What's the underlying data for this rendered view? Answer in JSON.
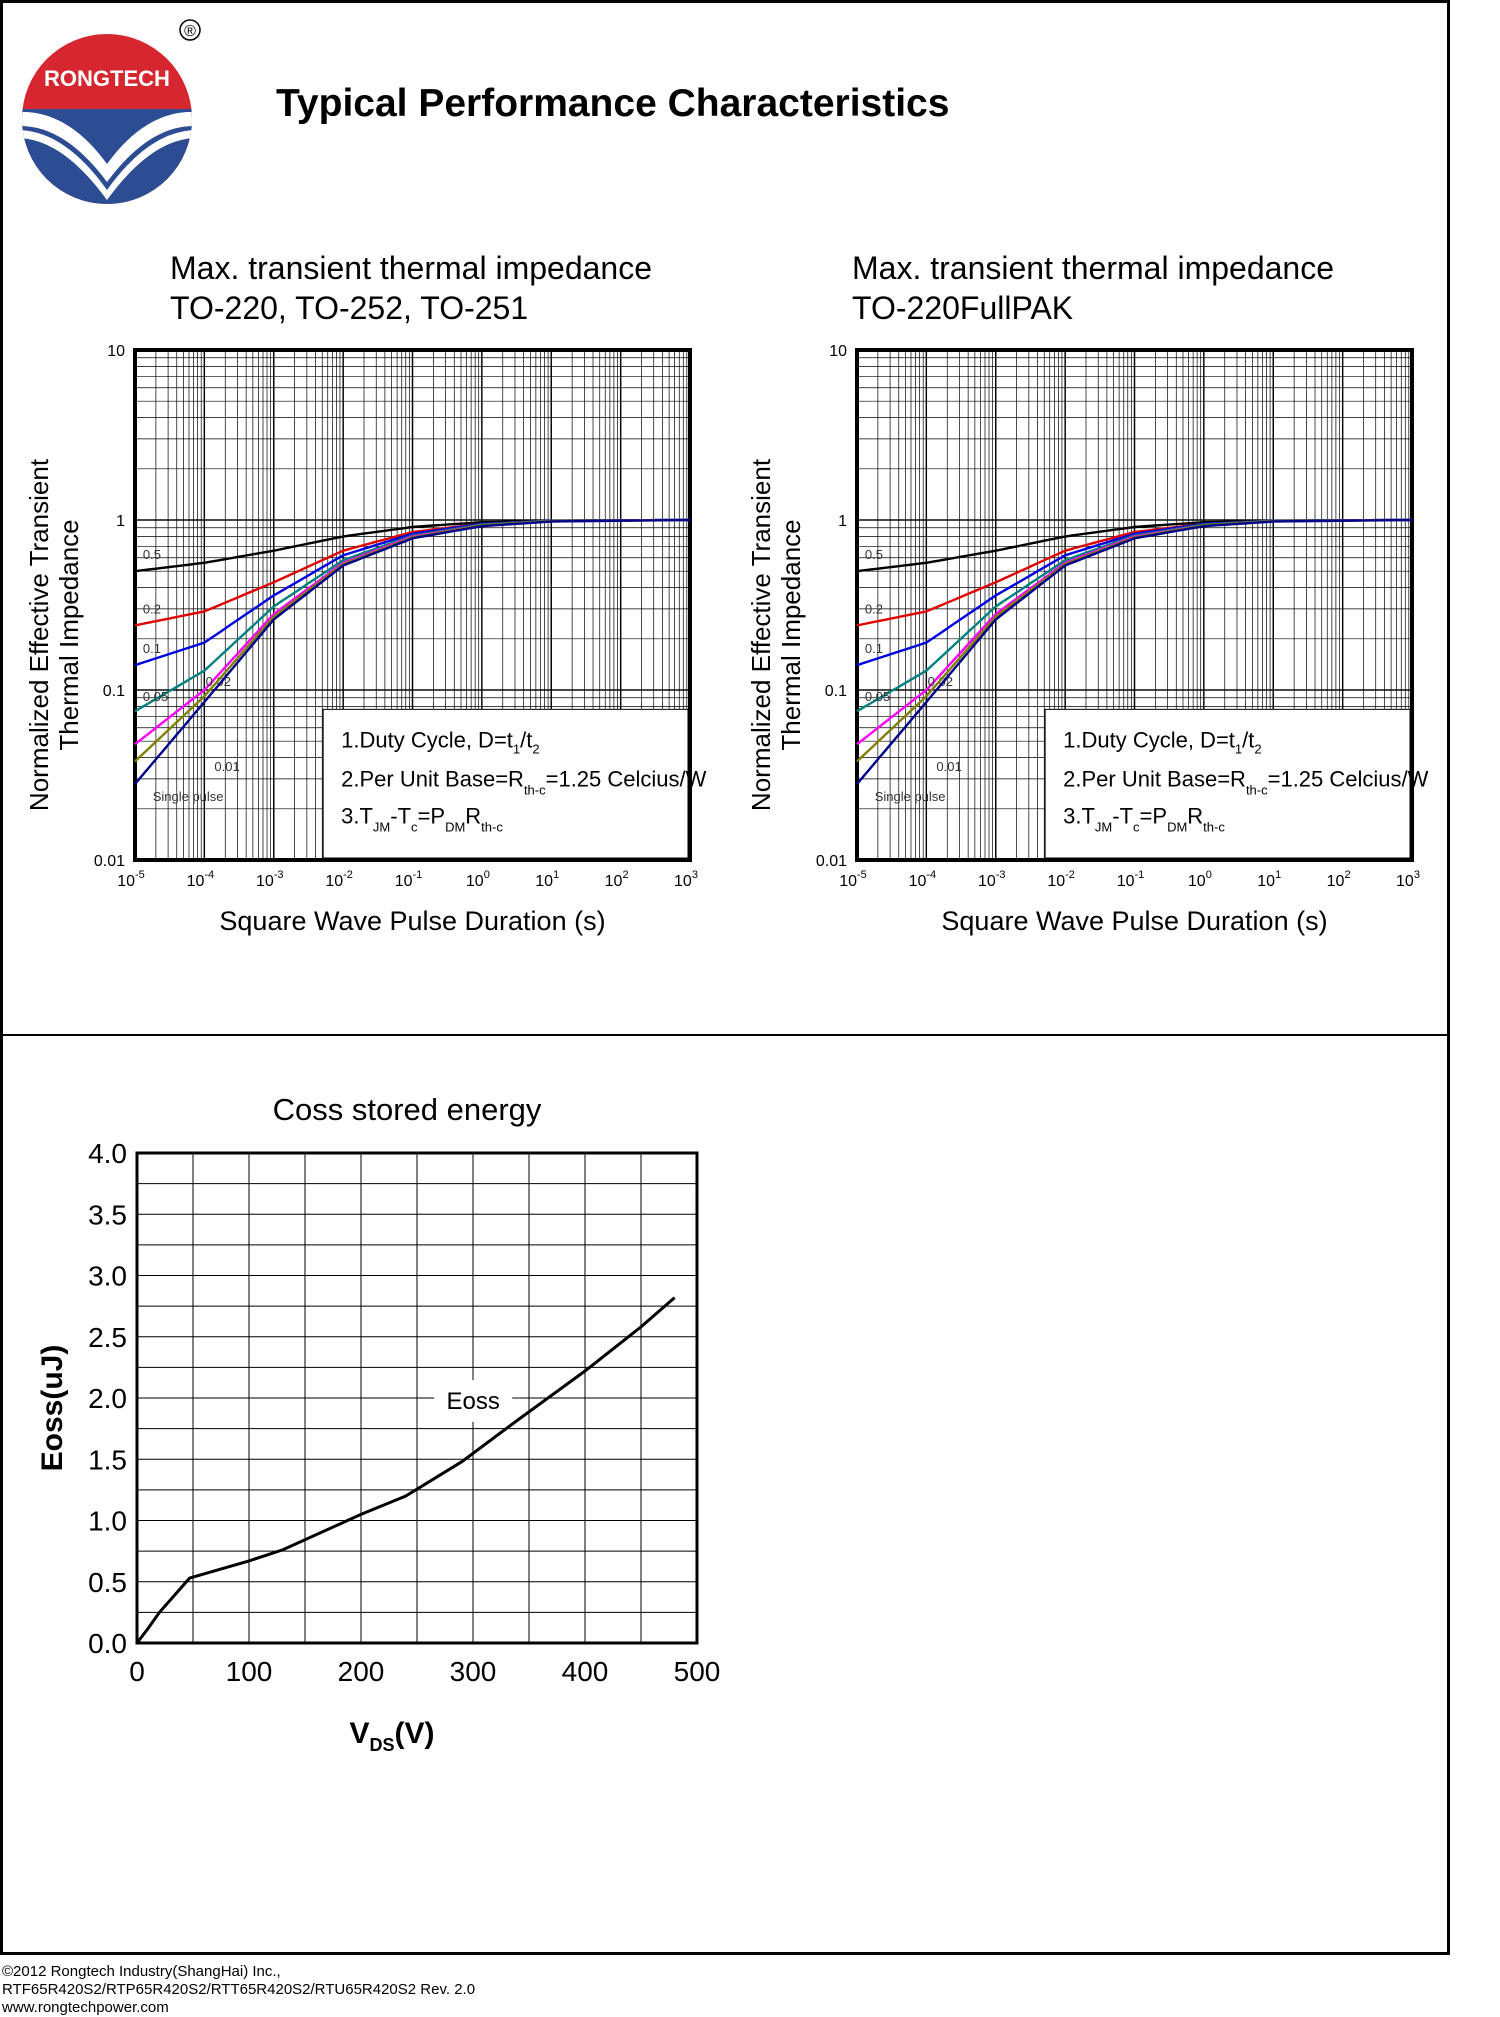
{
  "brand": {
    "name": "RONGTECH",
    "registered_mark": "®",
    "colors": {
      "red": "#d6262f",
      "blue": "#2c4c94"
    }
  },
  "header": {
    "title": "Typical Performance Characteristics"
  },
  "common": {
    "ylabel_line1": "Normalized Effective Transient",
    "ylabel_line2": "Thermal Impedance",
    "xlabel": "Square Wave Pulse Duration (s)",
    "y_ticks": [
      "10",
      "1",
      "0.1",
      "0.01"
    ],
    "x_tick_exponents": [
      "-5",
      "-4",
      "-3",
      "-2",
      "-1",
      "0",
      "1",
      "2",
      "3"
    ],
    "curve_labels": [
      "0.5",
      "0.2",
      "0.1",
      "0.05",
      "0.02",
      "0.01",
      "Single pulse"
    ],
    "notes": {
      "note1": {
        "main": "1.Duty Cycle, D=t",
        "sub1": "1",
        "mid": "/t",
        "sub2": "2"
      },
      "note2": {
        "main": "2.Per Unit Base=R",
        "sub": "th-c",
        "tail": "=1.25 Celcius/W"
      },
      "note3": {
        "p1": "3.T",
        "s1": "JM",
        "p2": "-T",
        "s2": "c",
        "p3": "=P",
        "s3": "DM",
        "p4": "R",
        "s4": "th-c"
      }
    }
  },
  "chart_data": [
    {
      "type": "line",
      "title_line1": "Max. transient thermal impedance",
      "title_line2": "TO-220, TO-252, TO-251",
      "x_scale": "log",
      "y_scale": "log",
      "xlim": [
        1e-05,
        1000
      ],
      "ylim": [
        0.01,
        10
      ],
      "series": [
        {
          "name": "0.5",
          "color": "#000000",
          "points": [
            [
              1e-05,
              0.5
            ],
            [
              0.0001,
              0.56
            ],
            [
              0.001,
              0.66
            ],
            [
              0.01,
              0.8
            ],
            [
              0.1,
              0.91
            ],
            [
              1,
              0.97
            ],
            [
              10,
              0.99
            ],
            [
              1000,
              1.0
            ]
          ]
        },
        {
          "name": "0.2",
          "color": "#e00000",
          "points": [
            [
              1e-05,
              0.24
            ],
            [
              0.0001,
              0.29
            ],
            [
              0.001,
              0.43
            ],
            [
              0.01,
              0.66
            ],
            [
              0.1,
              0.85
            ],
            [
              1,
              0.95
            ],
            [
              10,
              0.99
            ],
            [
              1000,
              1.0
            ]
          ]
        },
        {
          "name": "0.1",
          "color": "#0000e0",
          "points": [
            [
              1e-05,
              0.14
            ],
            [
              0.0001,
              0.19
            ],
            [
              0.001,
              0.36
            ],
            [
              0.01,
              0.62
            ],
            [
              0.1,
              0.83
            ],
            [
              1,
              0.95
            ],
            [
              10,
              0.99
            ],
            [
              1000,
              1.0
            ]
          ]
        },
        {
          "name": "0.05",
          "color": "#008080",
          "points": [
            [
              1e-05,
              0.075
            ],
            [
              0.0001,
              0.13
            ],
            [
              0.001,
              0.31
            ],
            [
              0.01,
              0.58
            ],
            [
              0.1,
              0.81
            ],
            [
              1,
              0.94
            ],
            [
              10,
              0.99
            ],
            [
              1000,
              1.0
            ]
          ]
        },
        {
          "name": "0.02",
          "color": "#ff00ff",
          "points": [
            [
              1e-05,
              0.048
            ],
            [
              0.0001,
              0.1
            ],
            [
              0.001,
              0.28
            ],
            [
              0.01,
              0.56
            ],
            [
              0.1,
              0.8
            ],
            [
              1,
              0.93
            ],
            [
              10,
              0.985
            ],
            [
              1000,
              1.0
            ]
          ]
        },
        {
          "name": "0.01",
          "color": "#808000",
          "points": [
            [
              1e-05,
              0.038
            ],
            [
              0.0001,
              0.092
            ],
            [
              0.001,
              0.27
            ],
            [
              0.01,
              0.55
            ],
            [
              0.1,
              0.79
            ],
            [
              1,
              0.93
            ],
            [
              10,
              0.985
            ],
            [
              1000,
              1.0
            ]
          ]
        },
        {
          "name": "Single pulse",
          "color": "#00008b",
          "points": [
            [
              1e-05,
              0.028
            ],
            [
              0.0001,
              0.085
            ],
            [
              0.001,
              0.26
            ],
            [
              0.01,
              0.54
            ],
            [
              0.1,
              0.78
            ],
            [
              1,
              0.92
            ],
            [
              10,
              0.98
            ],
            [
              1000,
              1.0
            ]
          ]
        }
      ]
    },
    {
      "type": "line",
      "title_line1": "Max. transient thermal impedance",
      "title_line2": "TO-220FullPAK",
      "x_scale": "log",
      "y_scale": "log",
      "xlim": [
        1e-05,
        1000
      ],
      "ylim": [
        0.01,
        10
      ],
      "series": [
        {
          "name": "0.5",
          "color": "#000000",
          "points": [
            [
              1e-05,
              0.5
            ],
            [
              0.0001,
              0.56
            ],
            [
              0.001,
              0.66
            ],
            [
              0.01,
              0.8
            ],
            [
              0.1,
              0.91
            ],
            [
              1,
              0.97
            ],
            [
              10,
              0.99
            ],
            [
              1000,
              1.0
            ]
          ]
        },
        {
          "name": "0.2",
          "color": "#e00000",
          "points": [
            [
              1e-05,
              0.24
            ],
            [
              0.0001,
              0.29
            ],
            [
              0.001,
              0.43
            ],
            [
              0.01,
              0.66
            ],
            [
              0.1,
              0.85
            ],
            [
              1,
              0.95
            ],
            [
              10,
              0.99
            ],
            [
              1000,
              1.0
            ]
          ]
        },
        {
          "name": "0.1",
          "color": "#0000e0",
          "points": [
            [
              1e-05,
              0.14
            ],
            [
              0.0001,
              0.19
            ],
            [
              0.001,
              0.36
            ],
            [
              0.01,
              0.62
            ],
            [
              0.1,
              0.83
            ],
            [
              1,
              0.95
            ],
            [
              10,
              0.99
            ],
            [
              1000,
              1.0
            ]
          ]
        },
        {
          "name": "0.05",
          "color": "#008080",
          "points": [
            [
              1e-05,
              0.075
            ],
            [
              0.0001,
              0.13
            ],
            [
              0.001,
              0.31
            ],
            [
              0.01,
              0.58
            ],
            [
              0.1,
              0.81
            ],
            [
              1,
              0.94
            ],
            [
              10,
              0.99
            ],
            [
              1000,
              1.0
            ]
          ]
        },
        {
          "name": "0.02",
          "color": "#ff00ff",
          "points": [
            [
              1e-05,
              0.048
            ],
            [
              0.0001,
              0.1
            ],
            [
              0.001,
              0.28
            ],
            [
              0.01,
              0.56
            ],
            [
              0.1,
              0.8
            ],
            [
              1,
              0.93
            ],
            [
              10,
              0.985
            ],
            [
              1000,
              1.0
            ]
          ]
        },
        {
          "name": "0.01",
          "color": "#808000",
          "points": [
            [
              1e-05,
              0.038
            ],
            [
              0.0001,
              0.092
            ],
            [
              0.001,
              0.27
            ],
            [
              0.01,
              0.55
            ],
            [
              0.1,
              0.79
            ],
            [
              1,
              0.93
            ],
            [
              10,
              0.985
            ],
            [
              1000,
              1.0
            ]
          ]
        },
        {
          "name": "Single pulse",
          "color": "#00008b",
          "points": [
            [
              1e-05,
              0.028
            ],
            [
              0.0001,
              0.085
            ],
            [
              0.001,
              0.26
            ],
            [
              0.01,
              0.54
            ],
            [
              0.1,
              0.78
            ],
            [
              1,
              0.92
            ],
            [
              10,
              0.98
            ],
            [
              1000,
              1.0
            ]
          ]
        }
      ]
    },
    {
      "type": "line",
      "title": "Coss stored energy",
      "xlabel": "V",
      "xlabel_sub": "DS",
      "xlabel_unit": "(V)",
      "ylabel": "Eoss(uJ)",
      "xlim": [
        0,
        500
      ],
      "ylim": [
        0,
        4
      ],
      "x_ticks": [
        "0",
        "100",
        "200",
        "300",
        "400",
        "500"
      ],
      "y_ticks": [
        "0.0",
        "0.5",
        "1.0",
        "1.5",
        "2.0",
        "2.5",
        "3.0",
        "3.5",
        "4.0"
      ],
      "series": [
        {
          "name": "Eoss",
          "color": "#000000",
          "points": [
            [
              0,
              0
            ],
            [
              10,
              0.12
            ],
            [
              20,
              0.25
            ],
            [
              47,
              0.53
            ],
            [
              100,
              0.67
            ],
            [
              130,
              0.76
            ],
            [
              200,
              1.05
            ],
            [
              240,
              1.2
            ],
            [
              290,
              1.48
            ],
            [
              340,
              1.82
            ],
            [
              400,
              2.22
            ],
            [
              450,
              2.58
            ],
            [
              480,
              2.82
            ]
          ]
        }
      ]
    }
  ],
  "footer": {
    "line1": "©2012 Rongtech Industry(ShangHai) Inc.,",
    "line2": "RTF65R420S2/RTP65R420S2/RTT65R420S2/RTU65R420S2 Rev. 2.0",
    "line3": "www.rongtechpower.com"
  }
}
